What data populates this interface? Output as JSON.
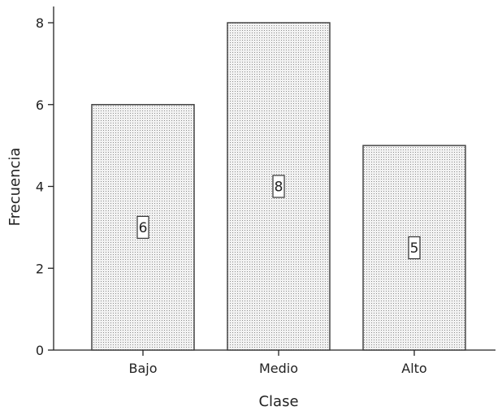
{
  "chart_data": {
    "type": "bar",
    "categories": [
      "Bajo",
      "Medio",
      "Alto"
    ],
    "values": [
      6,
      8,
      5
    ],
    "data_labels": [
      "6",
      "8",
      "5"
    ],
    "xlabel": "Clase",
    "ylabel": "Frecuencia",
    "ylim": [
      0,
      8
    ],
    "yticks": [
      0,
      2,
      4,
      6,
      8
    ],
    "grid": false,
    "legend": "none",
    "bar_fill": "#f2f2f2",
    "bar_dot_color": "#8c8c8c",
    "bar_border_color": "#3a3a3a"
  }
}
